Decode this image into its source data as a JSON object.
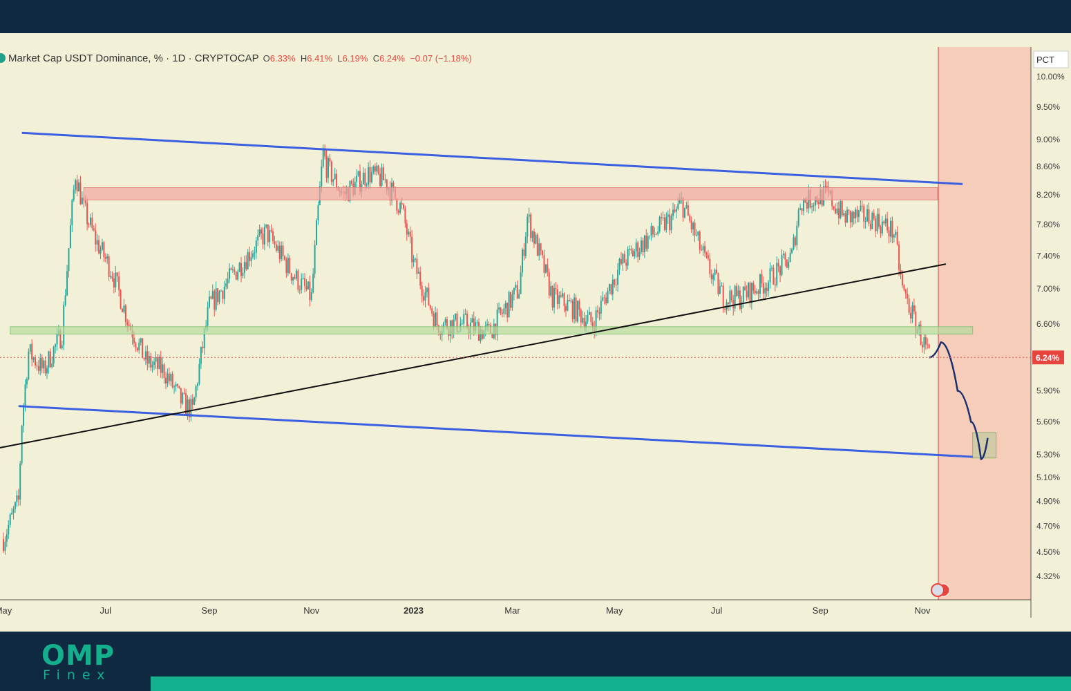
{
  "logo": {
    "main": "OMP",
    "sub": "Finex"
  },
  "legend": {
    "symbol": "Market Cap USDT Dominance, % · 1D · CRYPTOCAP",
    "o_label": "O",
    "o_value": "6.33%",
    "h_label": "H",
    "h_value": "6.41%",
    "l_label": "L",
    "l_value": "6.19%",
    "c_label": "C",
    "c_value": "6.24%",
    "change": "−0.07 (−1.18%)"
  },
  "scale_mode": "PCT",
  "last_price_label": "6.24%",
  "colors": {
    "background": "#f3f0d8",
    "frame": "#0f2a40",
    "brand": "#14b08e",
    "channel": "#3a5fe0",
    "trendline": "#111111",
    "resistance_zone": "#f2a5a0",
    "support_zone": "#b7dca0",
    "projection_zone": "#f5cdb8",
    "projection_path": "#1a2f6e",
    "candle_up": "#26a69a",
    "candle_down": "#ef5350"
  },
  "chart_data": {
    "type": "candlestick",
    "title": "Market Cap USDT Dominance, % · 1D · CRYPTOCAP",
    "xlabel": "",
    "ylabel": "",
    "y_scale": "log",
    "ylim": [
      4.2,
      10.1
    ],
    "x_ticks": [
      "May",
      "Jul",
      "Sep",
      "Nov",
      "2023",
      "Mar",
      "May",
      "Jul",
      "Sep",
      "Nov"
    ],
    "y_ticks": [
      "10.00%",
      "9.50%",
      "9.00%",
      "8.60%",
      "8.20%",
      "7.80%",
      "7.40%",
      "7.00%",
      "6.60%",
      "5.90%",
      "5.60%",
      "5.30%",
      "5.10%",
      "4.90%",
      "4.70%",
      "4.50%",
      "4.32%"
    ],
    "y_tick_values": [
      10.0,
      9.5,
      9.0,
      8.6,
      8.2,
      7.8,
      7.4,
      7.0,
      6.6,
      5.9,
      5.6,
      5.3,
      5.1,
      4.9,
      4.7,
      4.5,
      4.32
    ],
    "price_path": {
      "dates": [
        "2022-05-01",
        "2022-05-10",
        "2022-05-12",
        "2022-05-16",
        "2022-05-25",
        "2022-06-05",
        "2022-06-13",
        "2022-06-18",
        "2022-06-25",
        "2022-07-05",
        "2022-07-15",
        "2022-07-25",
        "2022-08-05",
        "2022-08-15",
        "2022-08-22",
        "2022-09-01",
        "2022-09-20",
        "2022-10-05",
        "2022-10-20",
        "2022-11-01",
        "2022-11-08",
        "2022-11-10",
        "2022-11-20",
        "2022-12-05",
        "2022-12-15",
        "2022-12-25",
        "2023-01-01",
        "2023-01-15",
        "2023-02-01",
        "2023-02-15",
        "2023-03-05",
        "2023-03-10",
        "2023-03-25",
        "2023-04-05",
        "2023-04-18",
        "2023-05-05",
        "2023-05-20",
        "2023-06-05",
        "2023-06-10",
        "2023-06-25",
        "2023-07-05",
        "2023-07-15",
        "2023-08-01",
        "2023-08-15",
        "2023-08-20",
        "2023-09-05",
        "2023-09-15",
        "2023-10-01",
        "2023-10-15",
        "2023-10-20",
        "2023-10-28",
        "2023-11-05"
      ],
      "close": [
        4.6,
        4.9,
        5.6,
        6.3,
        6.1,
        6.5,
        8.5,
        8.0,
        7.6,
        7.2,
        6.6,
        6.2,
        6.1,
        5.8,
        5.7,
        6.8,
        7.3,
        7.7,
        7.2,
        6.9,
        8.8,
        8.6,
        8.2,
        8.5,
        8.4,
        8.0,
        7.3,
        6.6,
        6.6,
        6.5,
        7.0,
        7.9,
        6.9,
        6.8,
        6.6,
        7.3,
        7.6,
        7.9,
        8.1,
        7.3,
        6.9,
        6.9,
        7.1,
        7.4,
        8.1,
        8.2,
        7.9,
        7.9,
        7.7,
        7.0,
        6.6,
        6.24
      ]
    },
    "last_value": 6.24,
    "drawings": {
      "upper_channel": [
        [
          "2022-05-12",
          9.1
        ],
        [
          "2023-11-25",
          8.35
        ]
      ],
      "lower_channel": [
        [
          "2022-05-10",
          5.75
        ],
        [
          "2023-12-01",
          5.28
        ]
      ],
      "ascending_trendline": [
        [
          "2022-04-25",
          5.35
        ],
        [
          "2023-11-15",
          7.3
        ]
      ],
      "resistance_zone": {
        "from": "2022-06-18",
        "to": "2023-11-10",
        "low": 8.13,
        "high": 8.3
      },
      "support_zone": {
        "from": "2022-05-05",
        "to": "2023-12-01",
        "low": 6.49,
        "high": 6.57
      },
      "target_zone": {
        "from": "2023-12-01",
        "to": "2023-12-15",
        "low": 5.27,
        "high": 5.5
      },
      "projection_path": [
        [
          "2023-11-05",
          6.24
        ],
        [
          "2023-11-12",
          6.4
        ],
        [
          "2023-11-22",
          5.9
        ],
        [
          "2023-11-30",
          5.6
        ],
        [
          "2023-12-06",
          5.26
        ],
        [
          "2023-12-10",
          5.45
        ]
      ],
      "forecast_region_start": "2023-11-01"
    },
    "grid": false
  }
}
